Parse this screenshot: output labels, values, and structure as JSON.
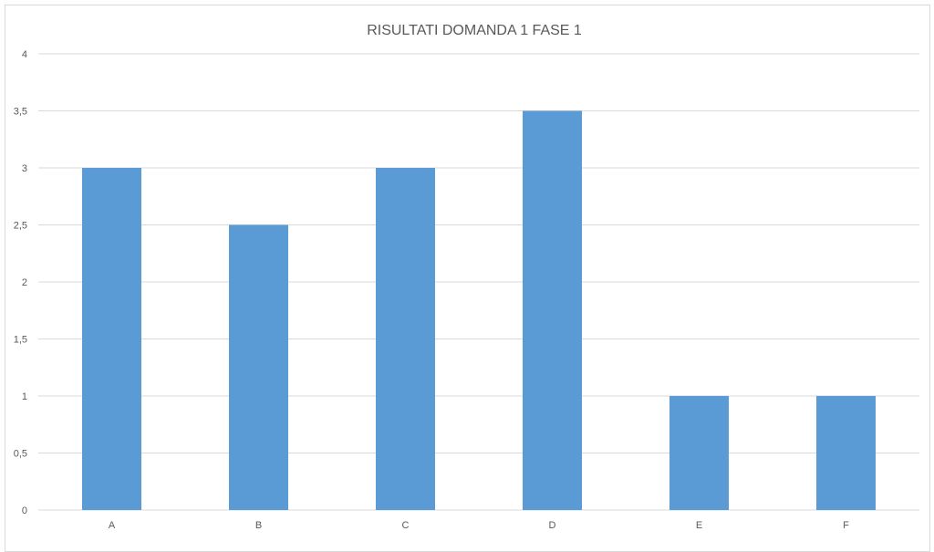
{
  "chart_data": {
    "type": "bar",
    "title": "RISULTATI DOMANDA 1 FASE 1",
    "xlabel": "",
    "ylabel": "",
    "categories": [
      "A",
      "B",
      "C",
      "D",
      "E",
      "F"
    ],
    "values": [
      3,
      2.5,
      3,
      3.5,
      1,
      1
    ],
    "ylim": [
      0,
      4
    ],
    "y_ticks": [
      "0",
      "0,5",
      "1",
      "1,5",
      "2",
      "2,5",
      "3",
      "3,5",
      "4"
    ],
    "bar_color": "#5b9bd5",
    "grid": true,
    "legend": "none"
  }
}
